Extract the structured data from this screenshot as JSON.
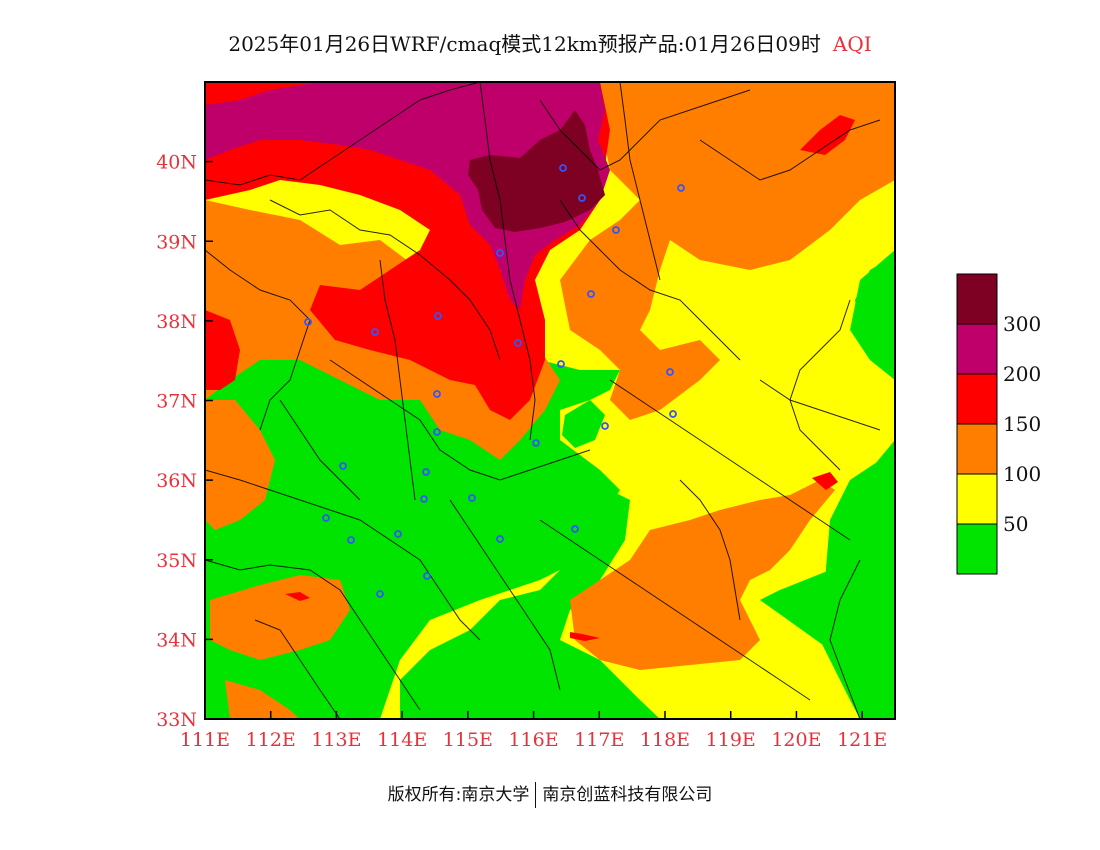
{
  "header": {
    "title": "2025年01月26日WRF/cmaq模式12km预报产品:01月26日09时",
    "variable": "AQI"
  },
  "map": {
    "lon_range": [
      111,
      121.5
    ],
    "lat_range": [
      33,
      41
    ],
    "x_ticks": [
      "111E",
      "112E",
      "113E",
      "114E",
      "115E",
      "116E",
      "117E",
      "118E",
      "119E",
      "120E",
      "121E"
    ],
    "y_ticks": [
      "33N",
      "34N",
      "35N",
      "36N",
      "37N",
      "38N",
      "39N",
      "40N"
    ],
    "colors": {
      "level_0_50": "#00e400",
      "level_50_100": "#ffff00",
      "level_100_150": "#ff7e00",
      "level_150_200": "#ff0000",
      "level_200_300": "#c0006a",
      "level_300_plus": "#7e0023",
      "station_marker": "#3355ff",
      "tick_text": "#e8313a"
    }
  },
  "legend": {
    "labels": [
      "300",
      "200",
      "150",
      "100",
      "50"
    ]
  },
  "footer": {
    "copyright": "版权所有:南京大学",
    "company": "南京创蓝科技有限公司"
  }
}
